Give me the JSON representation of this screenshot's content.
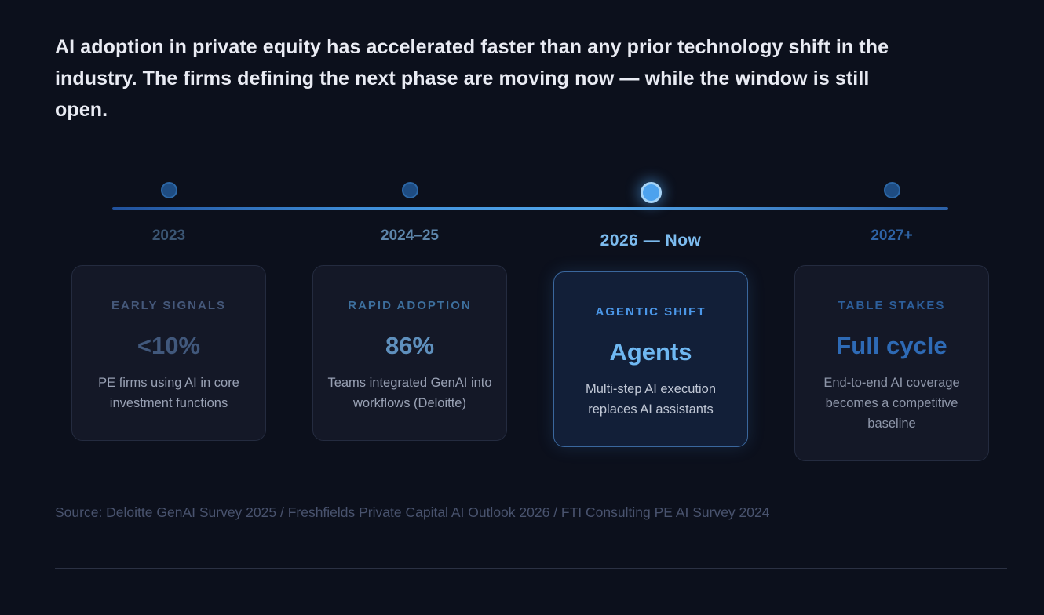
{
  "intro": {
    "text": "AI adoption in private equity has accelerated faster than any prior technology shift in the industry. The firms defining the next phase are moving now — while the window is still open."
  },
  "timeline": {
    "milestones": [
      {
        "year": "2023",
        "title": "EARLY SIGNALS",
        "stat": "<10%",
        "desc": "PE firms using AI in core investment functions",
        "active": false,
        "year_color": "#3b5674",
        "title_color": "#45587a",
        "stat_color": "#41587c",
        "desc_color": "#99a1b4",
        "dot_color": "#1e4c82"
      },
      {
        "year": "2024–25",
        "title": "RAPID ADOPTION",
        "stat": "86%",
        "desc": "Teams integrated GenAI into workflows (Deloitte)",
        "active": false,
        "year_color": "#5d85aa",
        "title_color": "#3d6f9d",
        "stat_color": "#5f90bd",
        "desc_color": "#99a1b4",
        "dot_color": "#1e4c82"
      },
      {
        "year": "2026 — Now",
        "title": "AGENTIC SHIFT",
        "stat": "Agents",
        "desc": "Multi-step AI execution replaces AI assistants",
        "active": true,
        "year_color": "#7cbbee",
        "title_color": "#4b97e8",
        "stat_color": "#6fb8f2",
        "desc_color": "#c0c7d5",
        "dot_color": "#4da2ee",
        "dot_ring_color": "#a7d4f7"
      },
      {
        "year": "2027+",
        "title": "TABLE STAKES",
        "stat": "Full cycle",
        "desc": "End-to-end AI coverage becomes a competitive baseline",
        "active": false,
        "year_color": "#2e63a5",
        "title_color": "#2d5f9b",
        "stat_color": "#2e6ab5",
        "desc_color": "#8e96a9",
        "dot_color": "#1e4c82"
      }
    ],
    "line_gradient": [
      "#21519c",
      "#54a8ec",
      "#2c60a6"
    ]
  },
  "footer": {
    "source": "Source: Deloitte GenAI Survey 2025 / Freshfields Private Capital AI Outlook 2026 / FTI Consulting PE AI Survey 2024"
  },
  "colors": {
    "background": "#0c101c",
    "intro_text": "#e9ebf3",
    "card_bg": "#141827",
    "card_border": "#242b3f",
    "active_card_bg": "#121f38",
    "active_card_border": "#3a679d",
    "source_text": "#49536e",
    "divider": "#2b3143"
  }
}
